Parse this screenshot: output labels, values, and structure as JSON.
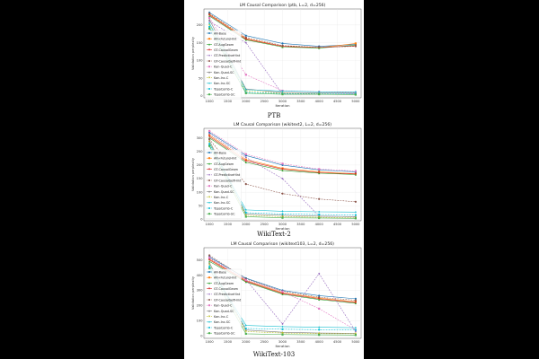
{
  "legend_labels": [
    "AR-Base",
    "AR+FutureHint",
    "GT-AugGeom",
    "GT-CausalGeom",
    "GT-PredictiveHint",
    "GT-CausalSelfHint",
    "Kan-Quad-C",
    "Kan-Quad-SC",
    "Kan-Inc-C",
    "Kan-Inc-SC",
    "TopoComb-C",
    "TopoComb-SC"
  ],
  "series_colors": [
    "#1f77b4",
    "#ff7f0e",
    "#2ca02c",
    "#d62728",
    "#9467bd",
    "#8c564b",
    "#e377c2",
    "#7f7f7f",
    "#bcbd22",
    "#17becf",
    "#00bcd4",
    "#4caf50"
  ],
  "chart_data": [
    {
      "type": "line",
      "title": "LM Causal Comparison (ptb, L=2, d=256)",
      "caption": "PTB",
      "xlabel": "Iteration",
      "ylabel": "Validation perplexity",
      "x": [
        1000,
        2000,
        3000,
        4000,
        5000
      ],
      "xticks": [
        1000,
        1500,
        2000,
        2500,
        3000,
        3500,
        4000,
        4500,
        5000
      ],
      "yticks": [
        0,
        50,
        100,
        150,
        200
      ],
      "ylim": [
        -5,
        245
      ],
      "legend": "upper-left",
      "grid": true,
      "series": [
        {
          "name": "AR-Base",
          "values": [
            235,
            170,
            148,
            140,
            145
          ]
        },
        {
          "name": "AR+FutureHint",
          "values": [
            230,
            162,
            140,
            136,
            148
          ]
        },
        {
          "name": "GT-AugGeom",
          "values": [
            225,
            158,
            138,
            135,
            143
          ]
        },
        {
          "name": "GT-CausalGeom",
          "values": [
            228,
            160,
            140,
            137,
            141
          ]
        },
        {
          "name": "GT-PredictiveHint",
          "values": [
            210,
            150,
            5,
            5,
            6
          ]
        },
        {
          "name": "GT-CausalSelfHint",
          "values": [
            232,
            165,
            142,
            137,
            140
          ]
        },
        {
          "name": "Kan-Quad-C",
          "values": [
            220,
            60,
            15,
            12,
            10
          ]
        },
        {
          "name": "Kan-Quad-SC",
          "values": [
            215,
            20,
            10,
            9,
            8
          ]
        },
        {
          "name": "Kan-Inc-C",
          "values": [
            200,
            15,
            8,
            6,
            5
          ]
        },
        {
          "name": "Kan-Inc-SC",
          "values": [
            205,
            18,
            14,
            12,
            12
          ]
        },
        {
          "name": "TopoComb-C",
          "values": [
            195,
            10,
            7,
            6,
            6
          ]
        },
        {
          "name": "TopoComb-SC",
          "values": [
            190,
            8,
            5,
            5,
            4
          ]
        }
      ]
    },
    {
      "type": "line",
      "title": "LM Causal Comparison (wikitext2, L=2, d=256)",
      "caption": "WikiText-2",
      "xlabel": "Iteration",
      "ylabel": "Validation perplexity",
      "x": [
        1000,
        2000,
        3000,
        4000,
        5000
      ],
      "xticks": [
        1000,
        1500,
        2000,
        2500,
        3000,
        3500,
        4000,
        4500,
        5000
      ],
      "yticks": [
        0,
        50,
        100,
        150,
        200,
        250,
        300
      ],
      "ylim": [
        -5,
        335
      ],
      "legend": "upper-left",
      "grid": true,
      "series": [
        {
          "name": "AR-Base",
          "values": [
            320,
            235,
            200,
            182,
            175
          ]
        },
        {
          "name": "AR+FutureHint",
          "values": [
            310,
            220,
            188,
            175,
            168
          ]
        },
        {
          "name": "GT-AugGeom",
          "values": [
            300,
            210,
            180,
            170,
            165
          ]
        },
        {
          "name": "GT-CausalGeom",
          "values": [
            305,
            215,
            185,
            172,
            167
          ]
        },
        {
          "name": "GT-PredictiveHint",
          "values": [
            315,
            228,
            150,
            12,
            10
          ]
        },
        {
          "name": "GT-CausalSelfHint",
          "values": [
            295,
            130,
            95,
            75,
            65
          ]
        },
        {
          "name": "Kan-Quad-C",
          "values": [
            325,
            240,
            205,
            185,
            178
          ]
        },
        {
          "name": "Kan-Quad-SC",
          "values": [
            290,
            20,
            15,
            12,
            10
          ]
        },
        {
          "name": "Kan-Inc-C",
          "values": [
            285,
            15,
            10,
            8,
            6
          ]
        },
        {
          "name": "Kan-Inc-SC",
          "values": [
            280,
            35,
            30,
            28,
            27
          ]
        },
        {
          "name": "TopoComb-C",
          "values": [
            275,
            25,
            20,
            18,
            16
          ]
        },
        {
          "name": "TopoComb-SC",
          "values": [
            270,
            10,
            6,
            5,
            4
          ]
        }
      ]
    },
    {
      "type": "line",
      "title": "LM Causal Comparison (wikitext103, L=2, d=256)",
      "caption": "WikiText-103",
      "xlabel": "Iteration",
      "ylabel": "Validation perplexity",
      "x": [
        1000,
        2000,
        3000,
        4000,
        5000
      ],
      "xticks": [
        1000,
        1500,
        2000,
        2500,
        3000,
        3500,
        4000,
        4500,
        5000
      ],
      "yticks": [
        0,
        100,
        200,
        300,
        400,
        500
      ],
      "ylim": [
        -15,
        580
      ],
      "legend": "upper-left",
      "grid": true,
      "series": [
        {
          "name": "AR-Base",
          "values": [
            520,
            380,
            300,
            265,
            245
          ]
        },
        {
          "name": "AR+FutureHint",
          "values": [
            505,
            365,
            285,
            250,
            225
          ]
        },
        {
          "name": "GT-AugGeom",
          "values": [
            490,
            355,
            275,
            240,
            215
          ]
        },
        {
          "name": "GT-CausalGeom",
          "values": [
            500,
            360,
            280,
            245,
            220
          ]
        },
        {
          "name": "GT-PredictiveHint",
          "values": [
            510,
            370,
            80,
            410,
            30
          ]
        },
        {
          "name": "GT-CausalSelfHint",
          "values": [
            530,
            375,
            295,
            255,
            235
          ]
        },
        {
          "name": "Kan-Quad-C",
          "values": [
            515,
            368,
            292,
            180,
            40
          ]
        },
        {
          "name": "Kan-Quad-SC",
          "values": [
            480,
            40,
            25,
            20,
            18
          ]
        },
        {
          "name": "Kan-Inc-C",
          "values": [
            470,
            30,
            20,
            16,
            15
          ]
        },
        {
          "name": "Kan-Inc-SC",
          "values": [
            460,
            70,
            62,
            58,
            55
          ]
        },
        {
          "name": "TopoComb-C",
          "values": [
            450,
            50,
            45,
            42,
            40
          ]
        },
        {
          "name": "TopoComb-SC",
          "values": [
            440,
            15,
            10,
            8,
            7
          ]
        }
      ]
    }
  ]
}
